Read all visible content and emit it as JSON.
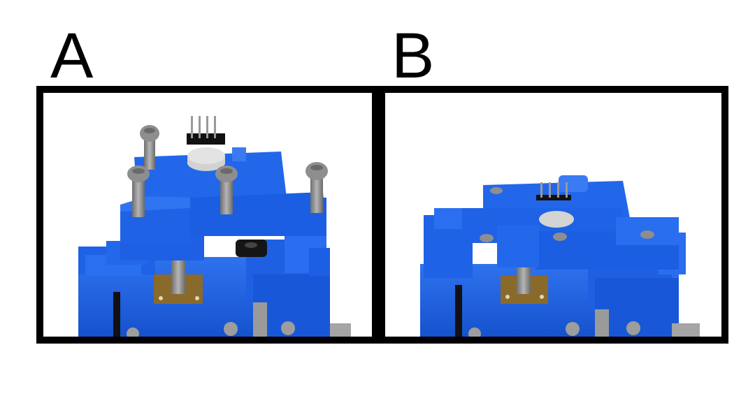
{
  "figure": {
    "panel_a": {
      "label": "A"
    },
    "panel_b": {
      "label": "B"
    }
  },
  "colors": {
    "part_blue": "#1a5fe0",
    "part_blue_dark": "#0f45b8",
    "part_blue_light": "#3a7af2",
    "screw_gray": "#8c8c8c",
    "disc_light": "#d6d6d6",
    "pcb_brown": "#8a6a2a",
    "header_black": "#111111",
    "frame": "#000000"
  }
}
